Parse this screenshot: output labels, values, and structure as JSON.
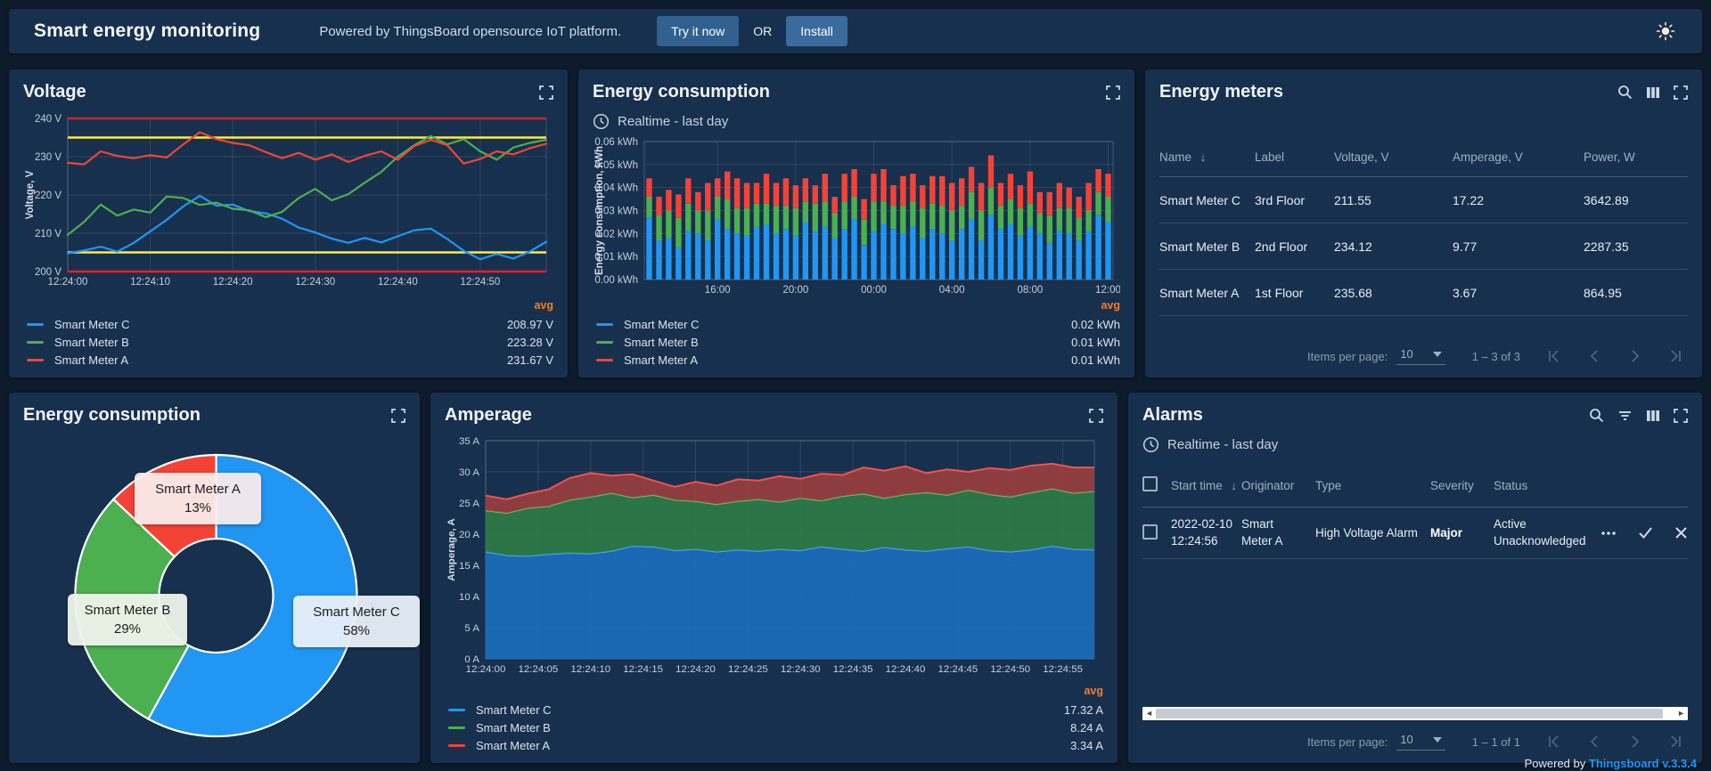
{
  "header": {
    "title": "Smart energy monitoring",
    "subtitle": "Powered by ThingsBoard opensource IoT platform.",
    "try_button": "Try it now",
    "or_label": "OR",
    "install_button": "Install"
  },
  "footer": {
    "powered_by": "Powered by",
    "version_link": "Thingsboard v.3.3.4"
  },
  "widgets": {
    "voltage": {
      "title": "Voltage",
      "legend_header": "avg",
      "legend": [
        {
          "name": "Smart Meter C",
          "value": "208.97 V",
          "color": "#2196f3"
        },
        {
          "name": "Smart Meter B",
          "value": "223.28 V",
          "color": "#4caf50"
        },
        {
          "name": "Smart Meter A",
          "value": "231.67 V",
          "color": "#f44336"
        }
      ]
    },
    "energy_bars": {
      "title": "Energy consumption",
      "timewindow": "Realtime - last day",
      "legend_header": "avg",
      "legend": [
        {
          "name": "Smart Meter C",
          "value": "0.02 kWh",
          "color": "#2196f3"
        },
        {
          "name": "Smart Meter B",
          "value": "0.01 kWh",
          "color": "#4caf50"
        },
        {
          "name": "Smart Meter A",
          "value": "0.01 kWh",
          "color": "#f44336"
        }
      ]
    },
    "energy_meters": {
      "title": "Energy meters",
      "columns": {
        "name": "Name",
        "label": "Label",
        "voltage": "Voltage, V",
        "amperage": "Amperage, V",
        "power": "Power, W"
      },
      "sort_arrow": "↓",
      "rows": [
        {
          "name": "Smart Meter C",
          "label": "3rd Floor",
          "voltage": "211.55",
          "amperage": "17.22",
          "power": "3642.89"
        },
        {
          "name": "Smart Meter B",
          "label": "2nd Floor",
          "voltage": "234.12",
          "amperage": "9.77",
          "power": "2287.35"
        },
        {
          "name": "Smart Meter A",
          "label": "1st Floor",
          "voltage": "235.68",
          "amperage": "3.67",
          "power": "864.95"
        }
      ],
      "pagination": {
        "items_per_page_label": "Items per page:",
        "items_per_page": "10",
        "range": "1 – 3 of 3"
      }
    },
    "energy_pie": {
      "title": "Energy consumption"
    },
    "amperage": {
      "title": "Amperage",
      "legend_header": "avg",
      "legend": [
        {
          "name": "Smart Meter C",
          "value": "17.32 A",
          "color": "#2196f3"
        },
        {
          "name": "Smart Meter B",
          "value": "8.24 A",
          "color": "#4caf50"
        },
        {
          "name": "Smart Meter A",
          "value": "3.34 A",
          "color": "#f44336"
        }
      ]
    },
    "alarms": {
      "title": "Alarms",
      "timewindow": "Realtime - last day",
      "columns": {
        "start_time": "Start time",
        "originator": "Originator",
        "type": "Type",
        "severity": "Severity",
        "status": "Status"
      },
      "sort_arrow": "↓",
      "rows": [
        {
          "start_time_line1": "2022-02-10",
          "start_time_line2": "12:24:56",
          "originator_line1": "Smart",
          "originator_line2": "Meter A",
          "type": "High Voltage Alarm",
          "severity": "Major",
          "status_line1": "Active",
          "status_line2": "Unacknowledged"
        }
      ],
      "pagination": {
        "items_per_page_label": "Items per page:",
        "items_per_page": "10",
        "range": "1 – 1 of 1"
      }
    }
  },
  "chart_data": [
    {
      "id": "voltage",
      "type": "line",
      "title": "Voltage",
      "ylabel": "Voltage, V",
      "ylim": [
        200,
        240
      ],
      "xdomain": [
        0,
        58
      ],
      "grid": true,
      "legend_position": "bottom",
      "yticks": [
        {
          "v": 240,
          "label": "240 V"
        },
        {
          "v": 230,
          "label": "230 V"
        },
        {
          "v": 220,
          "label": "220 V"
        },
        {
          "v": 210,
          "label": "210 V"
        },
        {
          "v": 200,
          "label": "200 V"
        }
      ],
      "xticks": [
        {
          "v": 0,
          "label": "12:24:00"
        },
        {
          "v": 10,
          "label": "12:24:10"
        },
        {
          "v": 20,
          "label": "12:24:20"
        },
        {
          "v": 30,
          "label": "12:24:30"
        },
        {
          "v": 40,
          "label": "12:24:40"
        },
        {
          "v": 50,
          "label": "12:24:50"
        }
      ],
      "thresholds": [
        {
          "value": 240,
          "color": "#c02a33"
        },
        {
          "value": 235,
          "color": "#ffeb3b"
        },
        {
          "value": 205,
          "color": "#ffeb3b"
        },
        {
          "value": 200,
          "color": "#ec1c24"
        }
      ],
      "series": [
        {
          "name": "Smart Meter C",
          "color": "#2196f3",
          "avg": 208.97,
          "values": [
            204.8,
            205.5,
            206.5,
            205.2,
            207.5,
            210.5,
            213.5,
            217.0,
            219.8,
            217.2,
            217.5,
            215.8,
            215.2,
            213.8,
            211.5,
            210.2,
            208.6,
            207.5,
            208.8,
            207.6,
            209.2,
            210.8,
            211.2,
            208.5,
            205.4,
            203.2,
            204.6,
            203.4,
            205.2,
            207.8
          ]
        },
        {
          "name": "Smart Meter B",
          "color": "#4caf50",
          "avg": 223.28,
          "values": [
            209.6,
            213.0,
            217.5,
            214.6,
            216.2,
            215.4,
            219.6,
            219.2,
            217.4,
            218.0,
            216.4,
            216.0,
            214.2,
            215.6,
            219.2,
            221.6,
            218.6,
            220.2,
            223.2,
            226.0,
            230.0,
            233.0,
            235.4,
            233.2,
            234.6,
            231.4,
            229.2,
            232.4,
            233.6,
            234.4
          ]
        },
        {
          "name": "Smart Meter A",
          "color": "#f44336",
          "avg": 231.67,
          "values": [
            228.4,
            228.0,
            231.4,
            230.2,
            229.6,
            230.4,
            229.8,
            233.2,
            236.4,
            234.6,
            233.6,
            233.0,
            231.2,
            229.6,
            231.0,
            229.2,
            230.6,
            228.6,
            230.2,
            231.4,
            229.2,
            232.8,
            234.4,
            233.0,
            228.2,
            229.4,
            231.4,
            230.6,
            232.2,
            233.4
          ]
        }
      ]
    },
    {
      "id": "energy_bars",
      "type": "bar",
      "stacked": true,
      "title": "Energy consumption",
      "ylabel": "Energy consumption, kWh",
      "ylim": [
        0,
        0.06
      ],
      "grid": true,
      "legend_position": "bottom",
      "yticks": [
        {
          "v": 0.06,
          "label": "0.06 kWh"
        },
        {
          "v": 0.05,
          "label": "0.05 kWh"
        },
        {
          "v": 0.04,
          "label": "0.04 kWh"
        },
        {
          "v": 0.03,
          "label": "0.03 kWh"
        },
        {
          "v": 0.02,
          "label": "0.02 kWh"
        },
        {
          "v": 0.01,
          "label": "0.01 kWh"
        },
        {
          "v": 0.0,
          "label": "0.00 kWh"
        }
      ],
      "xticks": [
        {
          "i": 7,
          "label": "16:00"
        },
        {
          "i": 15,
          "label": "20:00"
        },
        {
          "i": 23,
          "label": "00:00"
        },
        {
          "i": 31,
          "label": "04:00"
        },
        {
          "i": 39,
          "label": "08:00"
        },
        {
          "i": 47,
          "label": "12:00"
        }
      ],
      "series": [
        {
          "name": "Smart Meter C",
          "color": "#2196f3",
          "avg": 0.02,
          "values": [
            0.027,
            0.017,
            0.018,
            0.014,
            0.021,
            0.02,
            0.017,
            0.026,
            0.022,
            0.02,
            0.019,
            0.023,
            0.024,
            0.02,
            0.022,
            0.019,
            0.025,
            0.021,
            0.023,
            0.018,
            0.022,
            0.026,
            0.015,
            0.021,
            0.024,
            0.022,
            0.02,
            0.023,
            0.018,
            0.022,
            0.02,
            0.017,
            0.022,
            0.026,
            0.017,
            0.028,
            0.022,
            0.024,
            0.019,
            0.023,
            0.02,
            0.016,
            0.021,
            0.02,
            0.017,
            0.021,
            0.028,
            0.025
          ]
        },
        {
          "name": "Smart Meter B",
          "color": "#4caf50",
          "avg": 0.01,
          "values": [
            0.009,
            0.011,
            0.012,
            0.013,
            0.012,
            0.01,
            0.013,
            0.01,
            0.013,
            0.011,
            0.012,
            0.01,
            0.009,
            0.012,
            0.01,
            0.012,
            0.009,
            0.012,
            0.011,
            0.011,
            0.012,
            0.01,
            0.011,
            0.013,
            0.01,
            0.01,
            0.012,
            0.011,
            0.013,
            0.011,
            0.012,
            0.013,
            0.01,
            0.012,
            0.013,
            0.012,
            0.01,
            0.011,
            0.012,
            0.01,
            0.009,
            0.012,
            0.01,
            0.011,
            0.01,
            0.009,
            0.01,
            0.011
          ]
        },
        {
          "name": "Smart Meter A",
          "color": "#f44336",
          "avg": 0.01,
          "values": [
            0.008,
            0.008,
            0.009,
            0.01,
            0.011,
            0.008,
            0.012,
            0.008,
            0.012,
            0.013,
            0.011,
            0.009,
            0.013,
            0.01,
            0.012,
            0.01,
            0.01,
            0.008,
            0.012,
            0.007,
            0.012,
            0.012,
            0.009,
            0.012,
            0.014,
            0.009,
            0.013,
            0.012,
            0.01,
            0.012,
            0.013,
            0.012,
            0.012,
            0.011,
            0.012,
            0.014,
            0.01,
            0.011,
            0.01,
            0.014,
            0.009,
            0.01,
            0.011,
            0.009,
            0.009,
            0.012,
            0.01,
            0.01
          ]
        }
      ]
    },
    {
      "id": "energy_pie",
      "type": "pie",
      "title": "Energy consumption",
      "donut": true,
      "start_angle": -90,
      "slices": [
        {
          "name": "Smart Meter C",
          "pct": 58,
          "pct_label": "58%",
          "color": "#2196f3"
        },
        {
          "name": "Smart Meter B",
          "pct": 29,
          "pct_label": "29%",
          "color": "#4caf50"
        },
        {
          "name": "Smart Meter A",
          "pct": 13,
          "pct_label": "13%",
          "color": "#f44336"
        }
      ]
    },
    {
      "id": "amperage",
      "type": "area",
      "stacked": true,
      "title": "Amperage",
      "ylabel": "Amperage, A",
      "ylim": [
        0,
        35
      ],
      "xdomain": [
        0,
        58
      ],
      "grid": true,
      "legend_position": "bottom",
      "yticks": [
        {
          "v": 35,
          "label": "35 A"
        },
        {
          "v": 30,
          "label": "30 A"
        },
        {
          "v": 25,
          "label": "25 A"
        },
        {
          "v": 20,
          "label": "20 A"
        },
        {
          "v": 15,
          "label": "15 A"
        },
        {
          "v": 10,
          "label": "10 A"
        },
        {
          "v": 5,
          "label": "5 A"
        },
        {
          "v": 0,
          "label": "0 A"
        }
      ],
      "xticks": [
        {
          "v": 0,
          "label": "12:24:00"
        },
        {
          "v": 5,
          "label": "12:24:05"
        },
        {
          "v": 10,
          "label": "12:24:10"
        },
        {
          "v": 15,
          "label": "12:24:15"
        },
        {
          "v": 20,
          "label": "12:24:20"
        },
        {
          "v": 25,
          "label": "12:24:25"
        },
        {
          "v": 30,
          "label": "12:24:30"
        },
        {
          "v": 35,
          "label": "12:24:35"
        },
        {
          "v": 40,
          "label": "12:24:40"
        },
        {
          "v": 45,
          "label": "12:24:45"
        },
        {
          "v": 50,
          "label": "12:24:50"
        },
        {
          "v": 55,
          "label": "12:24:55"
        }
      ],
      "series": [
        {
          "name": "Smart Meter C",
          "color": "#42a5f5",
          "fill": "#1b6ec2",
          "avg": 17.32,
          "values": [
            17.2,
            16.6,
            16.5,
            16.8,
            17.0,
            16.9,
            17.3,
            18.1,
            18.0,
            17.4,
            17.6,
            17.2,
            17.5,
            17.3,
            17.6,
            17.4,
            18.0,
            17.6,
            17.3,
            17.9,
            17.5,
            17.3,
            17.7,
            18.0,
            17.4,
            17.2,
            17.5,
            18.1,
            17.6,
            17.5
          ]
        },
        {
          "name": "Smart Meter B",
          "color": "#66bb6a",
          "fill": "#2e7d45",
          "avg": 8.24,
          "values": [
            6.6,
            6.8,
            7.7,
            7.7,
            8.5,
            9.1,
            9.3,
            7.8,
            8.3,
            8.1,
            7.7,
            7.6,
            7.8,
            8.3,
            7.6,
            8.4,
            7.4,
            8.5,
            9.2,
            7.9,
            8.9,
            9.4,
            8.6,
            9.1,
            9.0,
            8.8,
            9.2,
            9.2,
            9.0,
            9.4
          ]
        },
        {
          "name": "Smart Meter A",
          "color": "#ef5350",
          "fill": "#9e3d3d",
          "avg": 3.34,
          "values": [
            2.4,
            2.2,
            2.3,
            2.7,
            3.5,
            3.8,
            2.8,
            3.7,
            2.3,
            2.1,
            3.1,
            3.0,
            3.5,
            3.0,
            4.1,
            3.1,
            4.3,
            3.4,
            4.2,
            4.4,
            4.5,
            3.1,
            4.1,
            2.9,
            4.2,
            4.3,
            4.3,
            4.0,
            4.1,
            3.8
          ]
        }
      ]
    }
  ]
}
